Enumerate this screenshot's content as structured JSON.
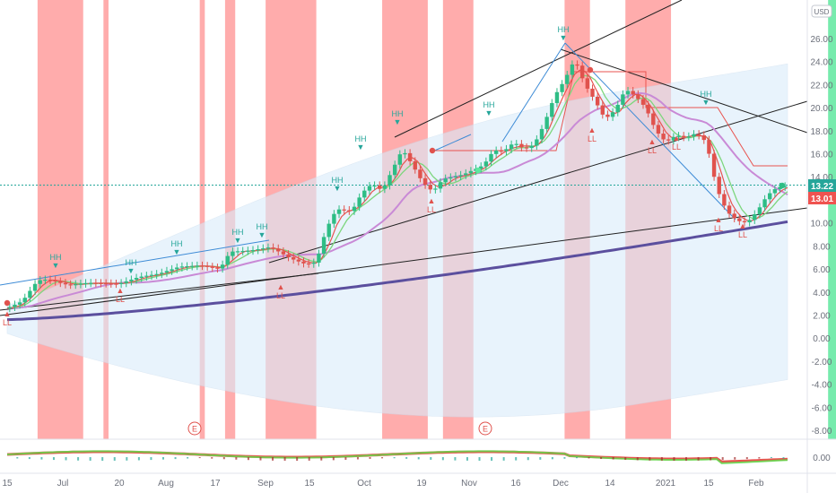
{
  "chart_data": {
    "type": "candlestick",
    "currency": "USD",
    "y_ticks": [
      "26.00",
      "24.00",
      "22.00",
      "20.00",
      "18.00",
      "16.00",
      "14.00",
      "12.00",
      "10.00",
      "8.00",
      "6.00",
      "4.00",
      "2.00",
      "0.00",
      "-2.00",
      "-4.00",
      "-6.00",
      "-8.00"
    ],
    "ylim": [
      -8.9,
      27.3
    ],
    "x_ticks": [
      "15",
      "Jul",
      "20",
      "Aug",
      "17",
      "Sep",
      "15",
      "Oct",
      "19",
      "Nov",
      "16",
      "Dec",
      "14",
      "2021",
      "15",
      "Feb"
    ],
    "price_labels": [
      {
        "text": "13.22",
        "value": 13.22,
        "color": "#26a69a"
      },
      {
        "text": "13.01",
        "value": 13.01,
        "color": "#ef5350"
      }
    ],
    "oscillator_label": "0.00",
    "earnings_marker": "E",
    "swing_labels": [
      "HH",
      "LL"
    ],
    "price_path": [
      [
        0,
        2.6
      ],
      [
        1.5,
        3.2
      ],
      [
        3,
        5.0
      ],
      [
        4,
        5.1
      ],
      [
        6,
        4.6
      ],
      [
        8,
        4.8
      ],
      [
        11,
        4.7
      ],
      [
        13,
        5.3
      ],
      [
        15,
        5.6
      ],
      [
        17,
        6.2
      ],
      [
        19,
        6.3
      ],
      [
        21,
        6.0
      ],
      [
        22,
        7.5
      ],
      [
        24,
        7.6
      ],
      [
        26,
        7.9
      ],
      [
        27,
        7.4
      ],
      [
        28,
        6.9
      ],
      [
        29.5,
        6.4
      ],
      [
        30.5,
        6.6
      ],
      [
        31.5,
        9.5
      ],
      [
        32.5,
        11.2
      ],
      [
        34,
        11.0
      ],
      [
        35,
        12.6
      ],
      [
        36,
        13.4
      ],
      [
        37,
        12.8
      ],
      [
        38,
        14.6
      ],
      [
        39,
        16.4
      ],
      [
        40,
        15.0
      ],
      [
        41,
        13.5
      ],
      [
        42,
        12.7
      ],
      [
        43,
        13.8
      ],
      [
        45,
        14.2
      ],
      [
        47,
        15.0
      ],
      [
        48,
        16.3
      ],
      [
        49,
        16.2
      ],
      [
        50,
        17.0
      ],
      [
        51,
        16.4
      ],
      [
        52,
        16.8
      ],
      [
        53,
        18.6
      ],
      [
        54,
        21.0
      ],
      [
        55,
        22.4
      ],
      [
        56,
        24.2
      ],
      [
        57,
        22.0
      ],
      [
        58,
        20.6
      ],
      [
        59,
        19.0
      ],
      [
        60,
        19.8
      ],
      [
        61,
        21.6
      ],
      [
        62,
        21.0
      ],
      [
        63,
        20.0
      ],
      [
        64,
        18.0
      ],
      [
        65,
        17.0
      ],
      [
        66,
        17.6
      ],
      [
        67,
        17.4
      ],
      [
        68,
        17.8
      ],
      [
        69,
        17.0
      ],
      [
        70,
        13.0
      ],
      [
        71,
        11.0
      ],
      [
        72,
        10.2
      ],
      [
        73,
        10.0
      ],
      [
        74,
        11.0
      ],
      [
        75,
        12.4
      ],
      [
        76,
        13.1
      ],
      [
        77,
        13.2
      ]
    ],
    "red_zones": [
      [
        3,
        7.5
      ],
      [
        9.5,
        10
      ],
      [
        19,
        19.5
      ],
      [
        21.5,
        22.5
      ],
      [
        25.5,
        30.5
      ],
      [
        37,
        41.5
      ],
      [
        43,
        46
      ],
      [
        55,
        57.5
      ],
      [
        61,
        65.5
      ]
    ],
    "green_zones": [
      [
        81,
        87
      ]
    ]
  }
}
